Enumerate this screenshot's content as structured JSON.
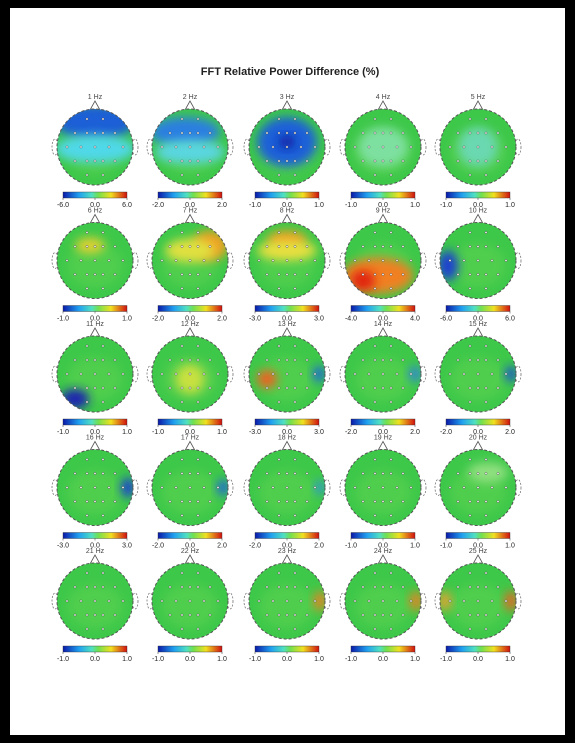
{
  "chart_data": {
    "type": "topomap",
    "title": "FFT Relative Power Difference  (%)",
    "maps": [
      {
        "label": "1 Hz",
        "colorbar_ticks": [
          {
            "value": -6,
            "label": "-6.0"
          },
          {
            "value": 0,
            "label": "0.0"
          },
          {
            "value": 6,
            "label": "6.0"
          }
        ]
      },
      {
        "label": "2 Hz",
        "colorbar_ticks": [
          {
            "value": -2,
            "label": "-2.0"
          },
          {
            "value": 0,
            "label": "0.0"
          },
          {
            "value": 2,
            "label": "2.0"
          }
        ]
      },
      {
        "label": "3 Hz",
        "colorbar_ticks": [
          {
            "value": -1,
            "label": "-1.0"
          },
          {
            "value": 0,
            "label": "0.0"
          },
          {
            "value": 1,
            "label": "1.0"
          }
        ]
      },
      {
        "label": "4 Hz",
        "colorbar_ticks": [
          {
            "value": -1,
            "label": "-1.0"
          },
          {
            "value": 0,
            "label": "0.0"
          },
          {
            "value": 1,
            "label": "1.0"
          }
        ]
      },
      {
        "label": "5 Hz",
        "colorbar_ticks": [
          {
            "value": -1,
            "label": "-1.0"
          },
          {
            "value": 0,
            "label": "0.0"
          },
          {
            "value": 1,
            "label": "1.0"
          }
        ]
      },
      {
        "label": "6 Hz",
        "colorbar_ticks": [
          {
            "value": -1,
            "label": "-1.0"
          },
          {
            "value": 0,
            "label": "0.0"
          },
          {
            "value": 1,
            "label": "1.0"
          }
        ]
      },
      {
        "label": "7 Hz",
        "colorbar_ticks": [
          {
            "value": -2,
            "label": "-2.0"
          },
          {
            "value": 0,
            "label": "0.0"
          },
          {
            "value": 2,
            "label": "2.0"
          }
        ]
      },
      {
        "label": "8 Hz",
        "colorbar_ticks": [
          {
            "value": -3,
            "label": "-3.0"
          },
          {
            "value": 0,
            "label": "0.0"
          },
          {
            "value": 3,
            "label": "3.0"
          }
        ]
      },
      {
        "label": "9 Hz",
        "colorbar_ticks": [
          {
            "value": -4,
            "label": "-4.0"
          },
          {
            "value": 0,
            "label": "0.0"
          },
          {
            "value": 4,
            "label": "4.0"
          }
        ]
      },
      {
        "label": "10 Hz",
        "colorbar_ticks": [
          {
            "value": -6,
            "label": "-6.0"
          },
          {
            "value": 0,
            "label": "0.0"
          },
          {
            "value": 6,
            "label": "6.0"
          }
        ]
      },
      {
        "label": "11 Hz",
        "colorbar_ticks": [
          {
            "value": -1,
            "label": "-1.0"
          },
          {
            "value": 0,
            "label": "0.0"
          },
          {
            "value": 1,
            "label": "1.0"
          }
        ]
      },
      {
        "label": "12 Hz",
        "colorbar_ticks": [
          {
            "value": -1,
            "label": "-1.0"
          },
          {
            "value": 0,
            "label": "0.0"
          },
          {
            "value": 1,
            "label": "1.0"
          }
        ]
      },
      {
        "label": "13 Hz",
        "colorbar_ticks": [
          {
            "value": -3,
            "label": "-3.0"
          },
          {
            "value": 0,
            "label": "0.0"
          },
          {
            "value": 3,
            "label": "3.0"
          }
        ]
      },
      {
        "label": "14 Hz",
        "colorbar_ticks": [
          {
            "value": -2,
            "label": "-2.0"
          },
          {
            "value": 0,
            "label": "0.0"
          },
          {
            "value": 2,
            "label": "2.0"
          }
        ]
      },
      {
        "label": "15 Hz",
        "colorbar_ticks": [
          {
            "value": -2,
            "label": "-2.0"
          },
          {
            "value": 0,
            "label": "0.0"
          },
          {
            "value": 2,
            "label": "2.0"
          }
        ]
      },
      {
        "label": "16 Hz",
        "colorbar_ticks": [
          {
            "value": -3,
            "label": "-3.0"
          },
          {
            "value": 0,
            "label": "0.0"
          },
          {
            "value": 3,
            "label": "3.0"
          }
        ]
      },
      {
        "label": "17 Hz",
        "colorbar_ticks": [
          {
            "value": -2,
            "label": "-2.0"
          },
          {
            "value": 0,
            "label": "0.0"
          },
          {
            "value": 2,
            "label": "2.0"
          }
        ]
      },
      {
        "label": "18 Hz",
        "colorbar_ticks": [
          {
            "value": -2,
            "label": "-2.0"
          },
          {
            "value": 0,
            "label": "0.0"
          },
          {
            "value": 2,
            "label": "2.0"
          }
        ]
      },
      {
        "label": "19 Hz",
        "colorbar_ticks": [
          {
            "value": -1,
            "label": "-1.0"
          },
          {
            "value": 0,
            "label": "0.0"
          },
          {
            "value": 1,
            "label": "1.0"
          }
        ]
      },
      {
        "label": "20 Hz",
        "colorbar_ticks": [
          {
            "value": -1,
            "label": "-1.0"
          },
          {
            "value": 0,
            "label": "0.0"
          },
          {
            "value": 1,
            "label": "1.0"
          }
        ]
      },
      {
        "label": "21 Hz",
        "colorbar_ticks": [
          {
            "value": -1,
            "label": "-1.0"
          },
          {
            "value": 0,
            "label": "0.0"
          },
          {
            "value": 1,
            "label": "1.0"
          }
        ]
      },
      {
        "label": "22 Hz",
        "colorbar_ticks": [
          {
            "value": -1,
            "label": "-1.0"
          },
          {
            "value": 0,
            "label": "0.0"
          },
          {
            "value": 1,
            "label": "1.0"
          }
        ]
      },
      {
        "label": "23 Hz",
        "colorbar_ticks": [
          {
            "value": -1,
            "label": "-1.0"
          },
          {
            "value": 0,
            "label": "0.0"
          },
          {
            "value": 1,
            "label": "1.0"
          }
        ]
      },
      {
        "label": "24 Hz",
        "colorbar_ticks": [
          {
            "value": -1,
            "label": "-1.0"
          },
          {
            "value": 0,
            "label": "0.0"
          },
          {
            "value": 1,
            "label": "1.0"
          }
        ]
      },
      {
        "label": "25 Hz",
        "colorbar_ticks": [
          {
            "value": -1,
            "label": "-1.0"
          },
          {
            "value": 0,
            "label": "0.0"
          },
          {
            "value": 1,
            "label": "1.0"
          }
        ]
      }
    ]
  }
}
